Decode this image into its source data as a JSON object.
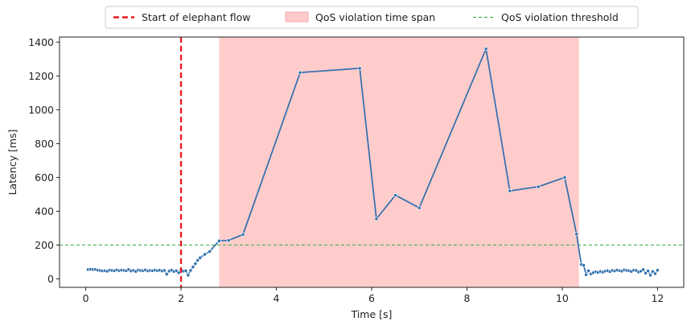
{
  "chart_data": {
    "type": "line",
    "title": "",
    "xlabel": "Time [s]",
    "ylabel": "Latency [ms]",
    "xlim": [
      -0.55,
      12.55
    ],
    "ylim": [
      -50,
      1430
    ],
    "x_ticks": [
      0,
      2,
      4,
      6,
      8,
      10,
      12
    ],
    "y_ticks": [
      0,
      200,
      400,
      600,
      800,
      1000,
      1200,
      1400
    ],
    "grid": false,
    "legend_position": "top-center-outside",
    "legend": [
      {
        "label": "Start of elephant flow",
        "kind": "dashed-line",
        "color": "#e8191c"
      },
      {
        "label": "QoS violation time span",
        "kind": "patch",
        "color": "#ffcccc"
      },
      {
        "label": "QoS violation threshold",
        "kind": "dashed-line",
        "color": "#4caf50"
      }
    ],
    "elephant_flow_start": 2.0,
    "violation_span": [
      2.8,
      10.35
    ],
    "threshold": 200,
    "series": [
      {
        "color": "#2f6fad",
        "x": [
          0.05,
          0.1,
          0.15,
          0.2,
          0.25,
          0.3,
          0.35,
          0.4,
          0.45,
          0.5,
          0.55,
          0.6,
          0.65,
          0.7,
          0.75,
          0.8,
          0.85,
          0.9,
          0.95,
          1.0,
          1.05,
          1.1,
          1.15,
          1.2,
          1.25,
          1.3,
          1.35,
          1.4,
          1.45,
          1.5,
          1.55,
          1.6,
          1.65,
          1.7,
          1.75,
          1.8,
          1.85,
          1.9,
          1.95,
          2.0,
          2.05,
          2.1,
          2.15,
          2.2,
          2.25,
          2.3,
          2.35,
          2.4,
          2.5,
          2.6,
          2.8,
          3.0,
          3.3,
          4.5,
          5.75,
          6.1,
          6.5,
          7.0,
          8.4,
          8.9,
          9.5,
          10.05,
          10.3,
          10.4,
          10.45,
          10.5,
          10.55,
          10.6,
          10.65,
          10.7,
          10.75,
          10.8,
          10.85,
          10.9,
          10.95,
          11.0,
          11.05,
          11.1,
          11.15,
          11.2,
          11.25,
          11.3,
          11.35,
          11.4,
          11.45,
          11.5,
          11.55,
          11.6,
          11.65,
          11.7,
          11.75,
          11.8,
          11.85,
          11.9,
          11.95,
          12.0
        ],
        "y": [
          55,
          57,
          55,
          56,
          52,
          50,
          47,
          48,
          45,
          52,
          50,
          48,
          53,
          49,
          52,
          50,
          48,
          55,
          47,
          50,
          44,
          52,
          50,
          48,
          53,
          47,
          50,
          48,
          52,
          49,
          51,
          47,
          50,
          28,
          46,
          52,
          44,
          48,
          36,
          53,
          46,
          48,
          22,
          50,
          70,
          90,
          110,
          125,
          145,
          162,
          225,
          228,
          262,
          1220,
          1245,
          355,
          495,
          420,
          1360,
          520,
          545,
          600,
          265,
          85,
          80,
          25,
          48,
          30,
          36,
          42,
          38,
          44,
          40,
          46,
          48,
          43,
          50,
          47,
          52,
          49,
          46,
          53,
          50,
          48,
          44,
          52,
          50,
          41,
          46,
          55,
          34,
          47,
          22,
          44,
          31,
          51
        ]
      }
    ]
  }
}
